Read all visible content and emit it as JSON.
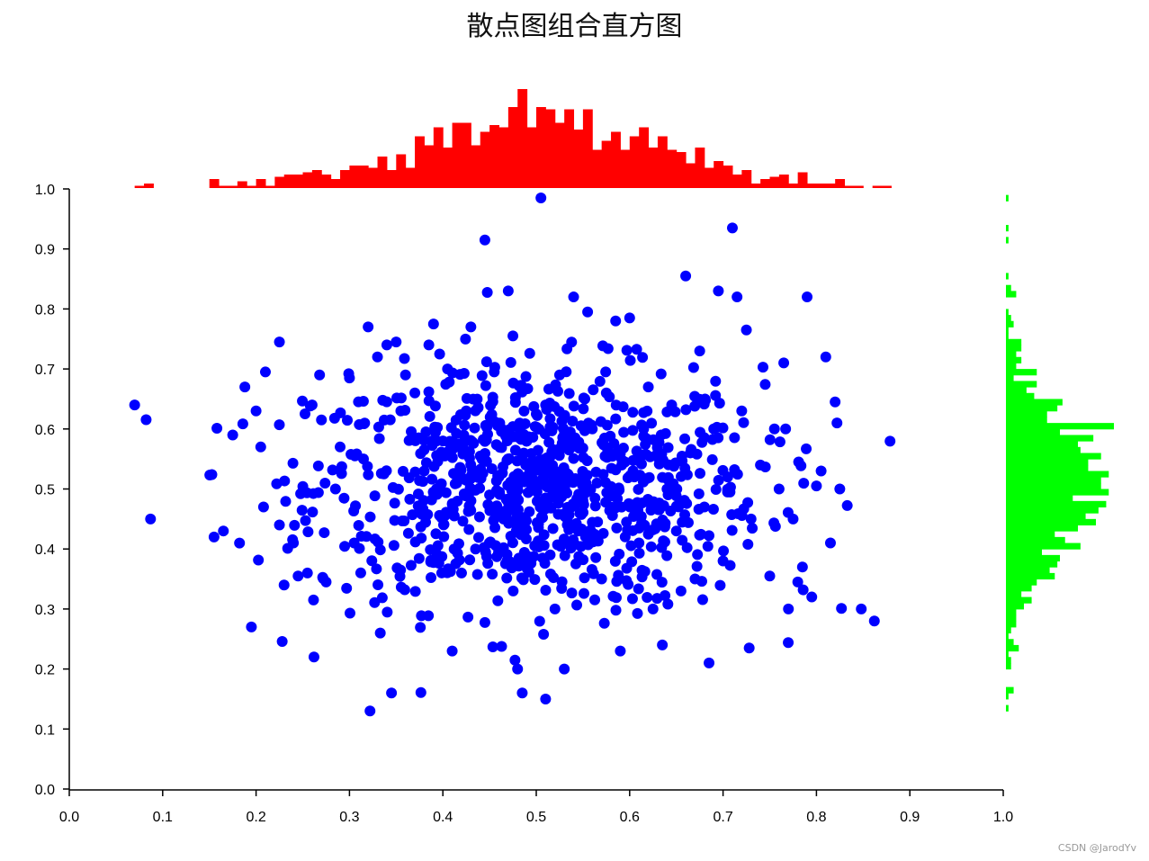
{
  "title": "散点图组合直方图",
  "watermark": "CSDN @JarodYv",
  "colors": {
    "scatter": "#0000ff",
    "top_histogram": "#ff0000",
    "right_histogram": "#00ff00",
    "axis": "#000000"
  },
  "chart_data": {
    "type": "scatter",
    "title": "散点图组合直方图",
    "xlabel": "",
    "ylabel": "",
    "xlim": [
      0.0,
      1.0
    ],
    "ylim": [
      0.0,
      1.0
    ],
    "grid": false,
    "x_ticks": [
      "0.0",
      "0.1",
      "0.2",
      "0.3",
      "0.4",
      "0.5",
      "0.6",
      "0.7",
      "0.8",
      "0.9",
      "1.0"
    ],
    "y_ticks": [
      "0.0",
      "0.1",
      "0.2",
      "0.3",
      "0.4",
      "0.5",
      "0.6",
      "0.7",
      "0.8",
      "0.9",
      "1.0"
    ],
    "scatter_points": [
      [
        0.07,
        0.64
      ],
      [
        0.087,
        0.45
      ],
      [
        0.155,
        0.42
      ],
      [
        0.165,
        0.43
      ],
      [
        0.175,
        0.59
      ],
      [
        0.188,
        0.67
      ],
      [
        0.195,
        0.27
      ],
      [
        0.2,
        0.63
      ],
      [
        0.205,
        0.57
      ],
      [
        0.208,
        0.47
      ],
      [
        0.21,
        0.695
      ],
      [
        0.225,
        0.745
      ],
      [
        0.225,
        0.44
      ],
      [
        0.23,
        0.34
      ],
      [
        0.24,
        0.41
      ],
      [
        0.245,
        0.355
      ],
      [
        0.255,
        0.36
      ],
      [
        0.26,
        0.64
      ],
      [
        0.262,
        0.22
      ],
      [
        0.268,
        0.69
      ],
      [
        0.27,
        0.615
      ],
      [
        0.275,
        0.345
      ],
      [
        0.285,
        0.5
      ],
      [
        0.29,
        0.57
      ],
      [
        0.3,
        0.685
      ],
      [
        0.305,
        0.41
      ],
      [
        0.315,
        0.55
      ],
      [
        0.32,
        0.77
      ],
      [
        0.322,
        0.13
      ],
      [
        0.33,
        0.72
      ],
      [
        0.333,
        0.26
      ],
      [
        0.34,
        0.74
      ],
      [
        0.345,
        0.16
      ],
      [
        0.35,
        0.745
      ],
      [
        0.355,
        0.63
      ],
      [
        0.36,
        0.69
      ],
      [
        0.37,
        0.66
      ],
      [
        0.38,
        0.53
      ],
      [
        0.385,
        0.74
      ],
      [
        0.39,
        0.775
      ],
      [
        0.395,
        0.55
      ],
      [
        0.4,
        0.58
      ],
      [
        0.405,
        0.7
      ],
      [
        0.41,
        0.23
      ],
      [
        0.415,
        0.51
      ],
      [
        0.42,
        0.36
      ],
      [
        0.425,
        0.63
      ],
      [
        0.43,
        0.77
      ],
      [
        0.435,
        0.4
      ],
      [
        0.44,
        0.555
      ],
      [
        0.445,
        0.915
      ],
      [
        0.45,
        0.49
      ],
      [
        0.455,
        0.695
      ],
      [
        0.46,
        0.52
      ],
      [
        0.465,
        0.45
      ],
      [
        0.47,
        0.83
      ],
      [
        0.475,
        0.755
      ],
      [
        0.48,
        0.2
      ],
      [
        0.485,
        0.16
      ],
      [
        0.49,
        0.58
      ],
      [
        0.495,
        0.5
      ],
      [
        0.5,
        0.625
      ],
      [
        0.505,
        0.985
      ],
      [
        0.51,
        0.15
      ],
      [
        0.515,
        0.54
      ],
      [
        0.52,
        0.3
      ],
      [
        0.525,
        0.69
      ],
      [
        0.53,
        0.2
      ],
      [
        0.535,
        0.565
      ],
      [
        0.54,
        0.82
      ],
      [
        0.545,
        0.43
      ],
      [
        0.55,
        0.48
      ],
      [
        0.555,
        0.795
      ],
      [
        0.56,
        0.6
      ],
      [
        0.565,
        0.51
      ],
      [
        0.57,
        0.35
      ],
      [
        0.575,
        0.66
      ],
      [
        0.58,
        0.47
      ],
      [
        0.585,
        0.78
      ],
      [
        0.59,
        0.23
      ],
      [
        0.595,
        0.545
      ],
      [
        0.6,
        0.785
      ],
      [
        0.605,
        0.52
      ],
      [
        0.61,
        0.41
      ],
      [
        0.615,
        0.6
      ],
      [
        0.62,
        0.67
      ],
      [
        0.625,
        0.3
      ],
      [
        0.63,
        0.56
      ],
      [
        0.635,
        0.24
      ],
      [
        0.64,
        0.5
      ],
      [
        0.645,
        0.64
      ],
      [
        0.65,
        0.43
      ],
      [
        0.655,
        0.33
      ],
      [
        0.66,
        0.855
      ],
      [
        0.665,
        0.56
      ],
      [
        0.67,
        0.35
      ],
      [
        0.675,
        0.73
      ],
      [
        0.68,
        0.47
      ],
      [
        0.685,
        0.21
      ],
      [
        0.69,
        0.6
      ],
      [
        0.695,
        0.83
      ],
      [
        0.7,
        0.38
      ],
      [
        0.705,
        0.52
      ],
      [
        0.71,
        0.935
      ],
      [
        0.715,
        0.82
      ],
      [
        0.72,
        0.63
      ],
      [
        0.725,
        0.765
      ],
      [
        0.728,
        0.235
      ],
      [
        0.73,
        0.45
      ],
      [
        0.74,
        0.54
      ],
      [
        0.75,
        0.355
      ],
      [
        0.755,
        0.6
      ],
      [
        0.76,
        0.5
      ],
      [
        0.765,
        0.71
      ],
      [
        0.77,
        0.3
      ],
      [
        0.775,
        0.45
      ],
      [
        0.78,
        0.345
      ],
      [
        0.785,
        0.37
      ],
      [
        0.79,
        0.82
      ],
      [
        0.795,
        0.32
      ],
      [
        0.8,
        0.505
      ],
      [
        0.805,
        0.53
      ],
      [
        0.81,
        0.72
      ],
      [
        0.815,
        0.41
      ],
      [
        0.82,
        0.645
      ],
      [
        0.822,
        0.61
      ],
      [
        0.825,
        0.5
      ],
      [
        0.848,
        0.3
      ],
      [
        0.862,
        0.28
      ]
    ],
    "cluster": {
      "x_center": 0.5,
      "y_center": 0.5,
      "x_sd": 0.12,
      "y_sd": 0.1,
      "n": 880
    },
    "top_histogram": {
      "bins": 100,
      "orientation": "vertical",
      "max_count": 34
    },
    "right_histogram": {
      "bins": 100,
      "orientation": "horizontal",
      "max_count": 37
    }
  }
}
